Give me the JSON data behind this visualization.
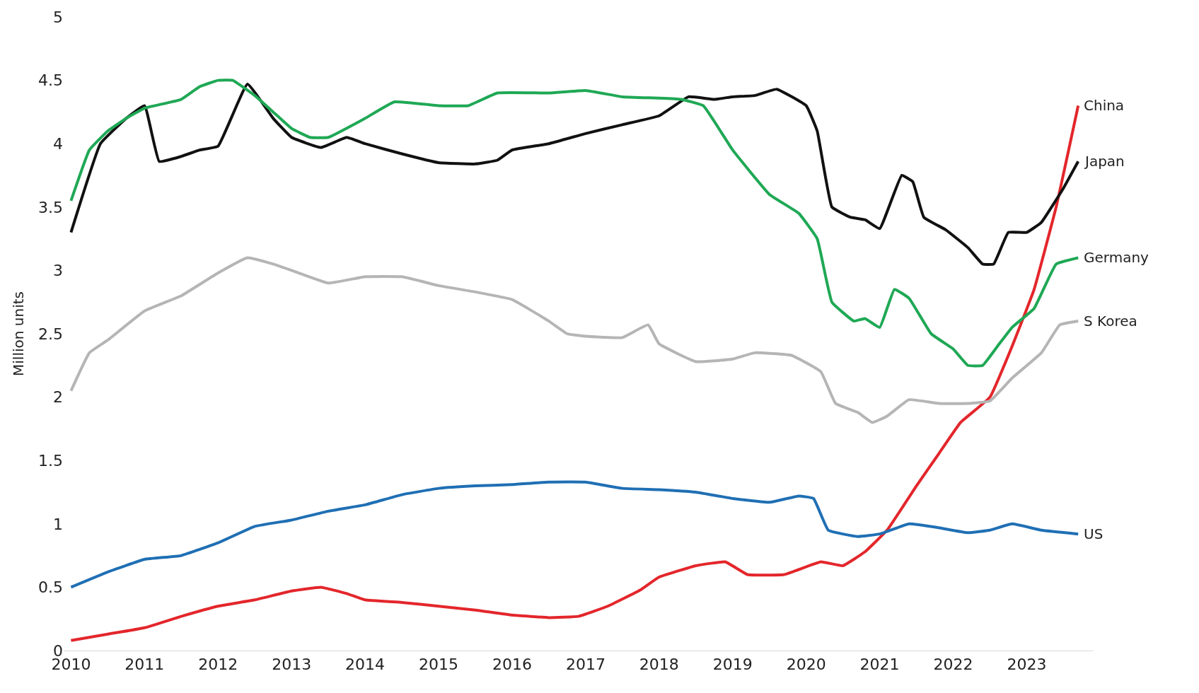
{
  "chart_data": {
    "type": "line",
    "ylabel": "Million units",
    "xlim": [
      2009.9,
      2023.9
    ],
    "xticks": [
      2010,
      2011,
      2012,
      2013,
      2014,
      2015,
      2016,
      2017,
      2018,
      2019,
      2020,
      2021,
      2022,
      2023
    ],
    "ylim": [
      0,
      5
    ],
    "yticks": [
      0,
      0.5,
      1,
      1.5,
      2,
      2.5,
      3,
      3.5,
      4,
      4.5,
      5
    ],
    "legend": false,
    "marker": "none",
    "line_style": "solid",
    "series": [
      {
        "name": "China",
        "color": "#e3262b",
        "x": [
          2010.0,
          2010.5,
          2011.0,
          2011.5,
          2012.0,
          2012.5,
          2013.0,
          2013.4,
          2013.75,
          2014.0,
          2014.5,
          2015.0,
          2015.5,
          2016.0,
          2016.5,
          2016.9,
          2017.3,
          2017.75,
          2018.0,
          2018.5,
          2018.9,
          2019.2,
          2019.7,
          2020.2,
          2020.5,
          2020.8,
          2021.1,
          2021.5,
          2021.8,
          2022.1,
          2022.5,
          2022.8,
          2023.1,
          2023.4,
          2023.7
        ],
        "values": [
          0.08,
          0.13,
          0.18,
          0.27,
          0.35,
          0.4,
          0.47,
          0.5,
          0.45,
          0.4,
          0.38,
          0.35,
          0.32,
          0.28,
          0.26,
          0.27,
          0.35,
          0.48,
          0.58,
          0.67,
          0.7,
          0.6,
          0.6,
          0.7,
          0.67,
          0.78,
          0.95,
          1.3,
          1.55,
          1.8,
          2.0,
          2.4,
          2.85,
          3.5,
          4.3
        ]
      },
      {
        "name": "Japan",
        "color": "#111111",
        "x": [
          2010.0,
          2010.4,
          2010.75,
          2011.0,
          2011.2,
          2011.5,
          2011.75,
          2012.0,
          2012.4,
          2012.75,
          2013.0,
          2013.4,
          2013.75,
          2014.0,
          2014.5,
          2015.0,
          2015.5,
          2015.8,
          2016.0,
          2016.5,
          2017.0,
          2017.5,
          2018.0,
          2018.4,
          2018.75,
          2019.0,
          2019.3,
          2019.6,
          2020.0,
          2020.15,
          2020.35,
          2020.6,
          2020.8,
          2021.0,
          2021.3,
          2021.45,
          2021.6,
          2021.9,
          2022.2,
          2022.4,
          2022.55,
          2022.75,
          2023.0,
          2023.2,
          2023.5,
          2023.7
        ],
        "values": [
          3.3,
          4.0,
          4.2,
          4.3,
          3.86,
          3.9,
          3.95,
          3.98,
          4.47,
          4.2,
          4.05,
          3.97,
          4.05,
          4.0,
          3.92,
          3.85,
          3.84,
          3.87,
          3.95,
          4.0,
          4.08,
          4.15,
          4.22,
          4.37,
          4.35,
          4.37,
          4.38,
          4.43,
          4.3,
          4.1,
          3.5,
          3.42,
          3.4,
          3.33,
          3.75,
          3.7,
          3.42,
          3.32,
          3.18,
          3.05,
          3.05,
          3.3,
          3.3,
          3.38,
          3.65,
          3.86
        ]
      },
      {
        "name": "Germany",
        "color": "#1fa855",
        "x": [
          2010.0,
          2010.25,
          2010.5,
          2010.75,
          2011.0,
          2011.5,
          2011.75,
          2012.0,
          2012.2,
          2012.5,
          2012.75,
          2013.0,
          2013.25,
          2013.5,
          2014.0,
          2014.4,
          2015.0,
          2015.4,
          2015.8,
          2016.5,
          2017.0,
          2017.5,
          2018.0,
          2018.3,
          2018.6,
          2019.0,
          2019.5,
          2019.9,
          2020.15,
          2020.35,
          2020.65,
          2020.8,
          2021.0,
          2021.2,
          2021.4,
          2021.7,
          2022.0,
          2022.2,
          2022.4,
          2022.6,
          2022.8,
          2023.1,
          2023.4,
          2023.7
        ],
        "values": [
          3.55,
          3.95,
          4.1,
          4.2,
          4.28,
          4.35,
          4.45,
          4.5,
          4.5,
          4.38,
          4.25,
          4.12,
          4.05,
          4.05,
          4.2,
          4.33,
          4.3,
          4.3,
          4.4,
          4.4,
          4.42,
          4.37,
          4.36,
          4.35,
          4.3,
          3.95,
          3.6,
          3.45,
          3.25,
          2.75,
          2.6,
          2.62,
          2.55,
          2.85,
          2.78,
          2.5,
          2.38,
          2.25,
          2.25,
          2.4,
          2.55,
          2.7,
          3.05,
          3.1
        ]
      },
      {
        "name": "S Korea",
        "color": "#b5b5b5",
        "x": [
          2010.0,
          2010.25,
          2010.5,
          2011.0,
          2011.5,
          2012.0,
          2012.4,
          2012.75,
          2013.0,
          2013.5,
          2014.0,
          2014.5,
          2015.0,
          2015.5,
          2016.0,
          2016.5,
          2016.75,
          2017.0,
          2017.5,
          2017.85,
          2018.0,
          2018.5,
          2019.0,
          2019.3,
          2019.8,
          2020.2,
          2020.4,
          2020.7,
          2020.9,
          2021.1,
          2021.4,
          2021.8,
          2022.2,
          2022.5,
          2022.8,
          2023.2,
          2023.45,
          2023.7
        ],
        "values": [
          2.05,
          2.35,
          2.45,
          2.68,
          2.8,
          2.98,
          3.1,
          3.05,
          3.0,
          2.9,
          2.95,
          2.95,
          2.88,
          2.83,
          2.77,
          2.6,
          2.5,
          2.48,
          2.47,
          2.57,
          2.42,
          2.28,
          2.3,
          2.35,
          2.33,
          2.2,
          1.95,
          1.88,
          1.8,
          1.85,
          1.98,
          1.95,
          1.95,
          1.97,
          2.15,
          2.35,
          2.57,
          2.6
        ]
      },
      {
        "name": "US",
        "color": "#1f6fb4",
        "x": [
          2010.0,
          2010.5,
          2011.0,
          2011.5,
          2012.0,
          2012.5,
          2013.0,
          2013.5,
          2014.0,
          2014.5,
          2015.0,
          2015.5,
          2016.0,
          2016.5,
          2017.0,
          2017.5,
          2018.0,
          2018.5,
          2019.0,
          2019.5,
          2019.9,
          2020.1,
          2020.3,
          2020.7,
          2021.0,
          2021.4,
          2021.8,
          2022.2,
          2022.5,
          2022.8,
          2023.2,
          2023.7
        ],
        "values": [
          0.5,
          0.62,
          0.72,
          0.75,
          0.85,
          0.98,
          1.03,
          1.1,
          1.15,
          1.23,
          1.28,
          1.3,
          1.31,
          1.33,
          1.33,
          1.28,
          1.27,
          1.25,
          1.2,
          1.17,
          1.22,
          1.2,
          0.95,
          0.9,
          0.92,
          1.0,
          0.97,
          0.93,
          0.95,
          1.0,
          0.95,
          0.92
        ]
      }
    ]
  }
}
